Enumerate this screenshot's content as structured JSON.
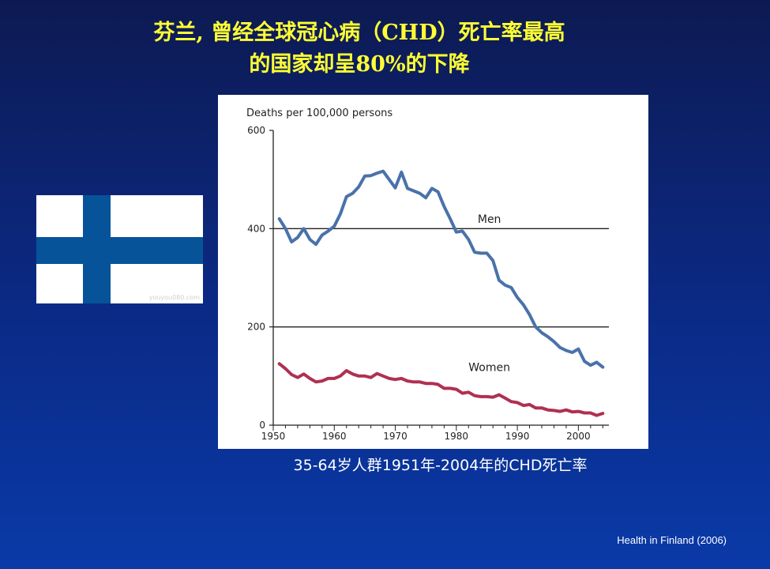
{
  "slide": {
    "title_line1": "芬兰, 曾经全球冠心病（CHD）死亡率最高",
    "title_line2": "的国家却呈80%的下降",
    "caption": "35-64岁人群1951年-2004年的CHD死亡率",
    "source": "Health in Finland (2006)",
    "flag_watermark": "youyou080.com",
    "flag_colors": {
      "background": "#ffffff",
      "cross": "#06539a"
    }
  },
  "chart_data": {
    "type": "line",
    "title": "",
    "ylabel": "Deaths per 100,000 persons",
    "xlabel": "",
    "xlim": [
      1950,
      2005
    ],
    "ylim": [
      0,
      600
    ],
    "xticks": [
      1950,
      1960,
      1970,
      1980,
      1990,
      2000
    ],
    "yticks": [
      0,
      200,
      400,
      600
    ],
    "grid": "horizontal lines at 200 and 400",
    "series": [
      {
        "name": "Men",
        "color": "#4a72aa",
        "points": [
          [
            1951,
            420
          ],
          [
            1952,
            400
          ],
          [
            1953,
            373
          ],
          [
            1954,
            382
          ],
          [
            1955,
            400
          ],
          [
            1956,
            378
          ],
          [
            1957,
            368
          ],
          [
            1958,
            387
          ],
          [
            1959,
            395
          ],
          [
            1960,
            405
          ],
          [
            1961,
            430
          ],
          [
            1962,
            465
          ],
          [
            1963,
            472
          ],
          [
            1964,
            485
          ],
          [
            1965,
            507
          ],
          [
            1966,
            508
          ],
          [
            1967,
            513
          ],
          [
            1968,
            517
          ],
          [
            1969,
            500
          ],
          [
            1970,
            483
          ],
          [
            1971,
            515
          ],
          [
            1972,
            482
          ],
          [
            1973,
            477
          ],
          [
            1974,
            472
          ],
          [
            1975,
            463
          ],
          [
            1976,
            482
          ],
          [
            1977,
            475
          ],
          [
            1978,
            445
          ],
          [
            1979,
            420
          ],
          [
            1980,
            393
          ],
          [
            1981,
            395
          ],
          [
            1982,
            378
          ],
          [
            1983,
            352
          ],
          [
            1984,
            350
          ],
          [
            1985,
            350
          ],
          [
            1986,
            335
          ],
          [
            1987,
            295
          ],
          [
            1988,
            285
          ],
          [
            1989,
            280
          ],
          [
            1990,
            260
          ],
          [
            1991,
            245
          ],
          [
            1992,
            225
          ],
          [
            1993,
            200
          ],
          [
            1994,
            188
          ],
          [
            1995,
            180
          ],
          [
            1996,
            170
          ],
          [
            1997,
            158
          ],
          [
            1998,
            152
          ],
          [
            1999,
            148
          ],
          [
            2000,
            155
          ],
          [
            2001,
            130
          ],
          [
            2002,
            122
          ],
          [
            2003,
            128
          ],
          [
            2004,
            118
          ]
        ]
      },
      {
        "name": "Women",
        "color": "#b03050",
        "points": [
          [
            1951,
            125
          ],
          [
            1952,
            115
          ],
          [
            1953,
            103
          ],
          [
            1954,
            97
          ],
          [
            1955,
            104
          ],
          [
            1956,
            95
          ],
          [
            1957,
            88
          ],
          [
            1958,
            90
          ],
          [
            1959,
            95
          ],
          [
            1960,
            95
          ],
          [
            1961,
            100
          ],
          [
            1962,
            111
          ],
          [
            1963,
            104
          ],
          [
            1964,
            100
          ],
          [
            1965,
            100
          ],
          [
            1966,
            97
          ],
          [
            1967,
            105
          ],
          [
            1968,
            100
          ],
          [
            1969,
            95
          ],
          [
            1970,
            93
          ],
          [
            1971,
            95
          ],
          [
            1972,
            90
          ],
          [
            1973,
            88
          ],
          [
            1974,
            88
          ],
          [
            1975,
            85
          ],
          [
            1976,
            85
          ],
          [
            1977,
            83
          ],
          [
            1978,
            75
          ],
          [
            1979,
            75
          ],
          [
            1980,
            73
          ],
          [
            1981,
            65
          ],
          [
            1982,
            67
          ],
          [
            1983,
            60
          ],
          [
            1984,
            58
          ],
          [
            1985,
            58
          ],
          [
            1986,
            57
          ],
          [
            1987,
            62
          ],
          [
            1988,
            55
          ],
          [
            1989,
            48
          ],
          [
            1990,
            46
          ],
          [
            1991,
            40
          ],
          [
            1992,
            42
          ],
          [
            1993,
            35
          ],
          [
            1994,
            35
          ],
          [
            1995,
            31
          ],
          [
            1996,
            30
          ],
          [
            1997,
            28
          ],
          [
            1998,
            31
          ],
          [
            1999,
            27
          ],
          [
            2000,
            28
          ],
          [
            2001,
            25
          ],
          [
            2002,
            25
          ],
          [
            2003,
            20
          ],
          [
            2004,
            24
          ]
        ]
      }
    ]
  }
}
